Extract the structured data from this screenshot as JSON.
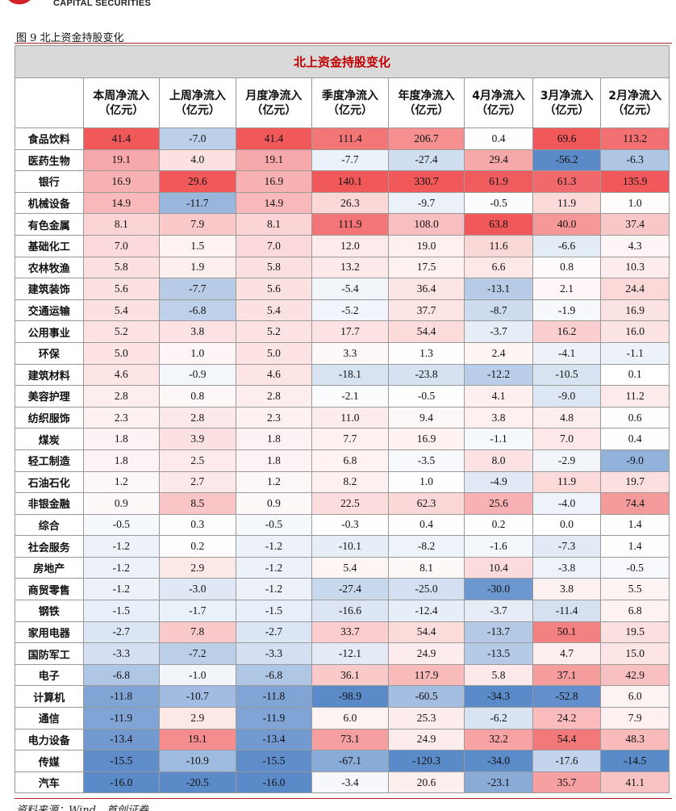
{
  "header": {
    "logo_text": "CAPITAL SECURITIES"
  },
  "figure": {
    "caption": "图 9 北上资金持股变化"
  },
  "table": {
    "title": "北上资金持股变化",
    "columns": [
      "本周净流入\n（亿元）",
      "上周净流入\n（亿元）",
      "月度净流入\n（亿元）",
      "季度净流入\n（亿元）",
      "年度净流入\n（亿元）",
      "4月净流入\n（亿元）",
      "3月净流入\n（亿元）",
      "2月净流入\n（亿元）"
    ],
    "rows": [
      {
        "name": "食品饮料",
        "values": [
          "41.4",
          "-7.0",
          "41.4",
          "111.4",
          "206.7",
          "0.4",
          "69.6",
          "113.2"
        ]
      },
      {
        "name": "医药生物",
        "values": [
          "19.1",
          "4.0",
          "19.1",
          "-7.7",
          "-27.4",
          "29.4",
          "-56.2",
          "-6.3"
        ]
      },
      {
        "name": "银行",
        "values": [
          "16.9",
          "29.6",
          "16.9",
          "140.1",
          "330.7",
          "61.9",
          "61.3",
          "135.9"
        ]
      },
      {
        "name": "机械设备",
        "values": [
          "14.9",
          "-11.7",
          "14.9",
          "26.3",
          "-9.7",
          "-0.5",
          "11.9",
          "1.0"
        ]
      },
      {
        "name": "有色金属",
        "values": [
          "8.1",
          "7.9",
          "8.1",
          "111.9",
          "108.0",
          "63.8",
          "40.0",
          "37.4"
        ]
      },
      {
        "name": "基础化工",
        "values": [
          "7.0",
          "1.5",
          "7.0",
          "12.0",
          "19.0",
          "11.6",
          "-6.6",
          "4.3"
        ]
      },
      {
        "name": "农林牧渔",
        "values": [
          "5.8",
          "1.9",
          "5.8",
          "13.2",
          "17.5",
          "6.6",
          "0.8",
          "10.3"
        ]
      },
      {
        "name": "建筑装饰",
        "values": [
          "5.6",
          "-7.7",
          "5.6",
          "-5.4",
          "36.4",
          "-13.1",
          "2.1",
          "24.4"
        ]
      },
      {
        "name": "交通运输",
        "values": [
          "5.4",
          "-6.8",
          "5.4",
          "-5.2",
          "37.7",
          "-8.7",
          "-1.9",
          "16.9"
        ]
      },
      {
        "name": "公用事业",
        "values": [
          "5.2",
          "3.8",
          "5.2",
          "17.7",
          "54.4",
          "-3.7",
          "16.2",
          "16.0"
        ]
      },
      {
        "name": "环保",
        "values": [
          "5.0",
          "1.0",
          "5.0",
          "3.3",
          "1.3",
          "2.4",
          "-4.1",
          "-1.1"
        ]
      },
      {
        "name": "建筑材料",
        "values": [
          "4.6",
          "-0.9",
          "4.6",
          "-18.1",
          "-23.8",
          "-12.2",
          "-10.5",
          "0.1"
        ]
      },
      {
        "name": "美容护理",
        "values": [
          "2.8",
          "0.8",
          "2.8",
          "-2.1",
          "-0.5",
          "4.1",
          "-9.0",
          "11.2"
        ]
      },
      {
        "name": "纺织服饰",
        "values": [
          "2.3",
          "2.8",
          "2.3",
          "11.0",
          "9.4",
          "3.8",
          "4.8",
          "0.6"
        ]
      },
      {
        "name": "煤炭",
        "values": [
          "1.8",
          "3.9",
          "1.8",
          "7.7",
          "16.9",
          "-1.1",
          "7.0",
          "0.4"
        ]
      },
      {
        "name": "轻工制造",
        "values": [
          "1.8",
          "2.5",
          "1.8",
          "6.8",
          "-3.5",
          "8.0",
          "-2.9",
          "-9.0"
        ]
      },
      {
        "name": "石油石化",
        "values": [
          "1.2",
          "2.7",
          "1.2",
          "8.2",
          "1.0",
          "-4.9",
          "11.9",
          "19.7"
        ]
      },
      {
        "name": "非银金融",
        "values": [
          "0.9",
          "8.5",
          "0.9",
          "22.5",
          "62.3",
          "25.6",
          "-4.0",
          "74.4"
        ]
      },
      {
        "name": "综合",
        "values": [
          "-0.5",
          "0.3",
          "-0.5",
          "-0.3",
          "0.4",
          "0.2",
          "0.0",
          "1.4"
        ]
      },
      {
        "name": "社会服务",
        "values": [
          "-1.2",
          "0.2",
          "-1.2",
          "-10.1",
          "-8.2",
          "-1.6",
          "-7.3",
          "1.4"
        ]
      },
      {
        "name": "房地产",
        "values": [
          "-1.2",
          "2.9",
          "-1.2",
          "5.4",
          "8.1",
          "10.4",
          "-3.8",
          "-0.5"
        ]
      },
      {
        "name": "商贸零售",
        "values": [
          "-1.2",
          "-3.0",
          "-1.2",
          "-27.4",
          "-25.0",
          "-30.0",
          "3.8",
          "5.5"
        ]
      },
      {
        "name": "钢铁",
        "values": [
          "-1.5",
          "-1.7",
          "-1.5",
          "-16.6",
          "-12.4",
          "-3.7",
          "-11.4",
          "6.8"
        ]
      },
      {
        "name": "家用电器",
        "values": [
          "-2.7",
          "7.8",
          "-2.7",
          "33.7",
          "54.4",
          "-13.7",
          "50.1",
          "19.5"
        ]
      },
      {
        "name": "国防军工",
        "values": [
          "-3.3",
          "-7.2",
          "-3.3",
          "-12.1",
          "24.9",
          "-13.5",
          "4.7",
          "15.0"
        ]
      },
      {
        "name": "电子",
        "values": [
          "-6.8",
          "-1.0",
          "-6.8",
          "36.1",
          "117.9",
          "5.8",
          "37.1",
          "42.9"
        ]
      },
      {
        "name": "计算机",
        "values": [
          "-11.8",
          "-10.7",
          "-11.8",
          "-98.9",
          "-60.5",
          "-34.3",
          "-52.8",
          "6.0"
        ]
      },
      {
        "name": "通信",
        "values": [
          "-11.9",
          "2.9",
          "-11.9",
          "6.0",
          "25.3",
          "-6.2",
          "24.2",
          "7.9"
        ]
      },
      {
        "name": "电力设备",
        "values": [
          "-13.4",
          "19.1",
          "-13.4",
          "73.1",
          "24.9",
          "32.2",
          "54.4",
          "48.3"
        ]
      },
      {
        "name": "传媒",
        "values": [
          "-15.5",
          "-10.9",
          "-15.5",
          "-67.1",
          "-120.3",
          "-34.0",
          "-17.6",
          "-14.5"
        ]
      },
      {
        "name": "汽车",
        "values": [
          "-16.0",
          "-20.5",
          "-16.0",
          "-3.4",
          "20.6",
          "-23.1",
          "35.7",
          "41.1"
        ]
      }
    ]
  },
  "footer": {
    "source": "资料来源：Wind，首创证券"
  },
  "colors": {
    "positive_max": "#f0585a",
    "negative_max": "#5b8ac9",
    "neutral": "#ffffff",
    "rule": "#b22222",
    "title_text": "#c00000"
  }
}
